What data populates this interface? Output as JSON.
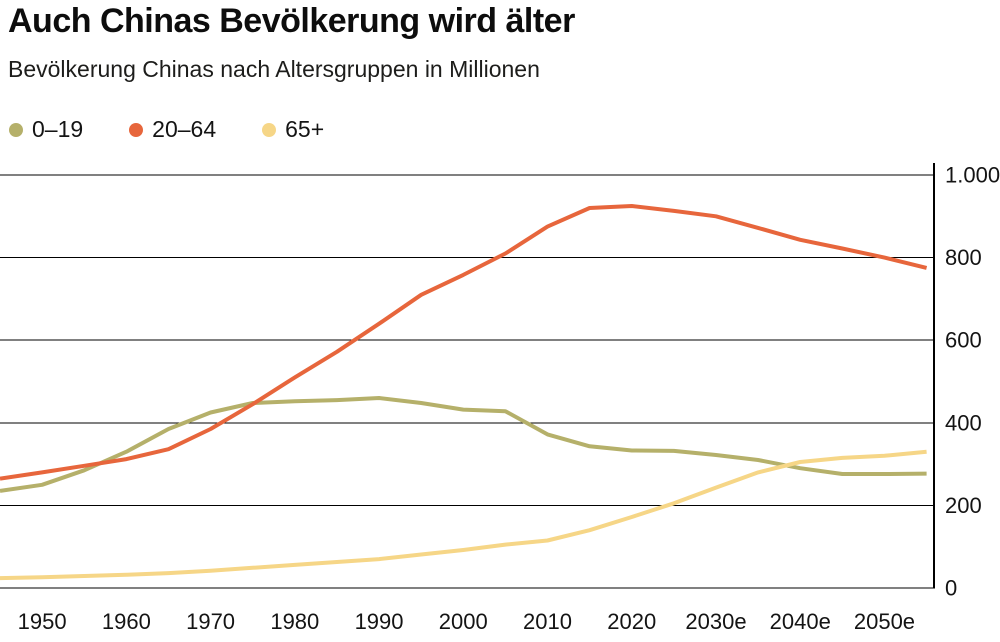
{
  "header": {
    "title": "Auch Chinas Bevölkerung wird älter",
    "subtitle": "Bevölkerung Chinas nach Altersgruppen in Millionen"
  },
  "legend": [
    {
      "id": "0-19",
      "label": "0–19",
      "color": "#b5b06a"
    },
    {
      "id": "20-64",
      "label": "20–64",
      "color": "#e7663c"
    },
    {
      "id": "65plus",
      "label": "65+",
      "color": "#f6d687"
    }
  ],
  "chart_data": {
    "type": "line",
    "title": "Auch Chinas Bevölkerung wird älter",
    "subtitle": "Bevölkerung Chinas nach Altersgruppen in Millionen",
    "unit": "Millionen",
    "x": [
      1945,
      1950,
      1955,
      1960,
      1965,
      1970,
      1975,
      1980,
      1985,
      1990,
      1995,
      2000,
      2005,
      2010,
      2015,
      2020,
      2025,
      2030,
      2035,
      2040,
      2045,
      2050,
      2055
    ],
    "series": [
      {
        "id": "0-19",
        "name": "0–19",
        "color": "#b5b06a",
        "values": [
          235,
          250,
          285,
          330,
          385,
          425,
          448,
          452,
          455,
          460,
          448,
          432,
          428,
          372,
          343,
          333,
          332,
          322,
          310,
          290,
          276,
          276,
          277
        ]
      },
      {
        "id": "20-64",
        "name": "20–64",
        "color": "#e7663c",
        "values": [
          265,
          280,
          296,
          312,
          336,
          385,
          445,
          510,
          572,
          640,
          710,
          758,
          810,
          875,
          920,
          925,
          913,
          900,
          872,
          843,
          822,
          800,
          775
        ]
      },
      {
        "id": "65plus",
        "name": "65+",
        "color": "#f6d687",
        "values": [
          24,
          26,
          29,
          32,
          36,
          42,
          49,
          56,
          63,
          70,
          81,
          92,
          105,
          115,
          140,
          172,
          205,
          243,
          280,
          305,
          315,
          320,
          330
        ]
      }
    ],
    "x_ticks": [
      1950,
      1960,
      1970,
      1980,
      1990,
      2000,
      2010,
      2020,
      2030,
      2040,
      2050
    ],
    "x_tick_labels": [
      "1950",
      "1960",
      "1970",
      "1980",
      "1990",
      "2000",
      "2010",
      "2020",
      "2030e",
      "2040e",
      "2050e"
    ],
    "y_ticks": [
      0,
      200,
      400,
      600,
      800,
      1000
    ],
    "y_tick_labels": [
      "0",
      "200",
      "400",
      "600",
      "800",
      "1.000"
    ],
    "xlim": [
      1945,
      2056
    ],
    "ylim": [
      0,
      1000
    ],
    "grid": "horizontal",
    "gridline_color": "#000000",
    "y_axis_side": "right",
    "legend_position": "top-left"
  }
}
